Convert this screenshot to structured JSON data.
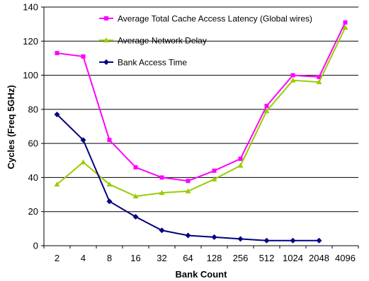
{
  "chart_data": {
    "type": "line",
    "title": "",
    "xlabel": "Bank Count",
    "ylabel": "Cycles (Freq 5GHz)",
    "ylim": [
      0,
      140
    ],
    "yticks": [
      0,
      20,
      40,
      60,
      80,
      100,
      120,
      140
    ],
    "grid": "horizontal",
    "legend_position": "top-right",
    "categories": [
      "2",
      "4",
      "8",
      "16",
      "32",
      "64",
      "128",
      "256",
      "512",
      "1024",
      "2048",
      "4096"
    ],
    "series": [
      {
        "name": "Average Total Cache Access Latency (Global wires)",
        "color": "#FF00FF",
        "marker": "square",
        "values": [
          113,
          111,
          62,
          46,
          40,
          38,
          44,
          51,
          82,
          100,
          99,
          131
        ]
      },
      {
        "name": "Average Network Delay",
        "color": "#99CC00",
        "marker": "triangle",
        "values": [
          36,
          49,
          36,
          29,
          31,
          32,
          39,
          47,
          79,
          97,
          96,
          128
        ]
      },
      {
        "name": "Bank Access Time",
        "color": "#000080",
        "marker": "diamond",
        "values": [
          77,
          62,
          26,
          17,
          9,
          6,
          5,
          4,
          3,
          3,
          3,
          null
        ]
      }
    ]
  }
}
